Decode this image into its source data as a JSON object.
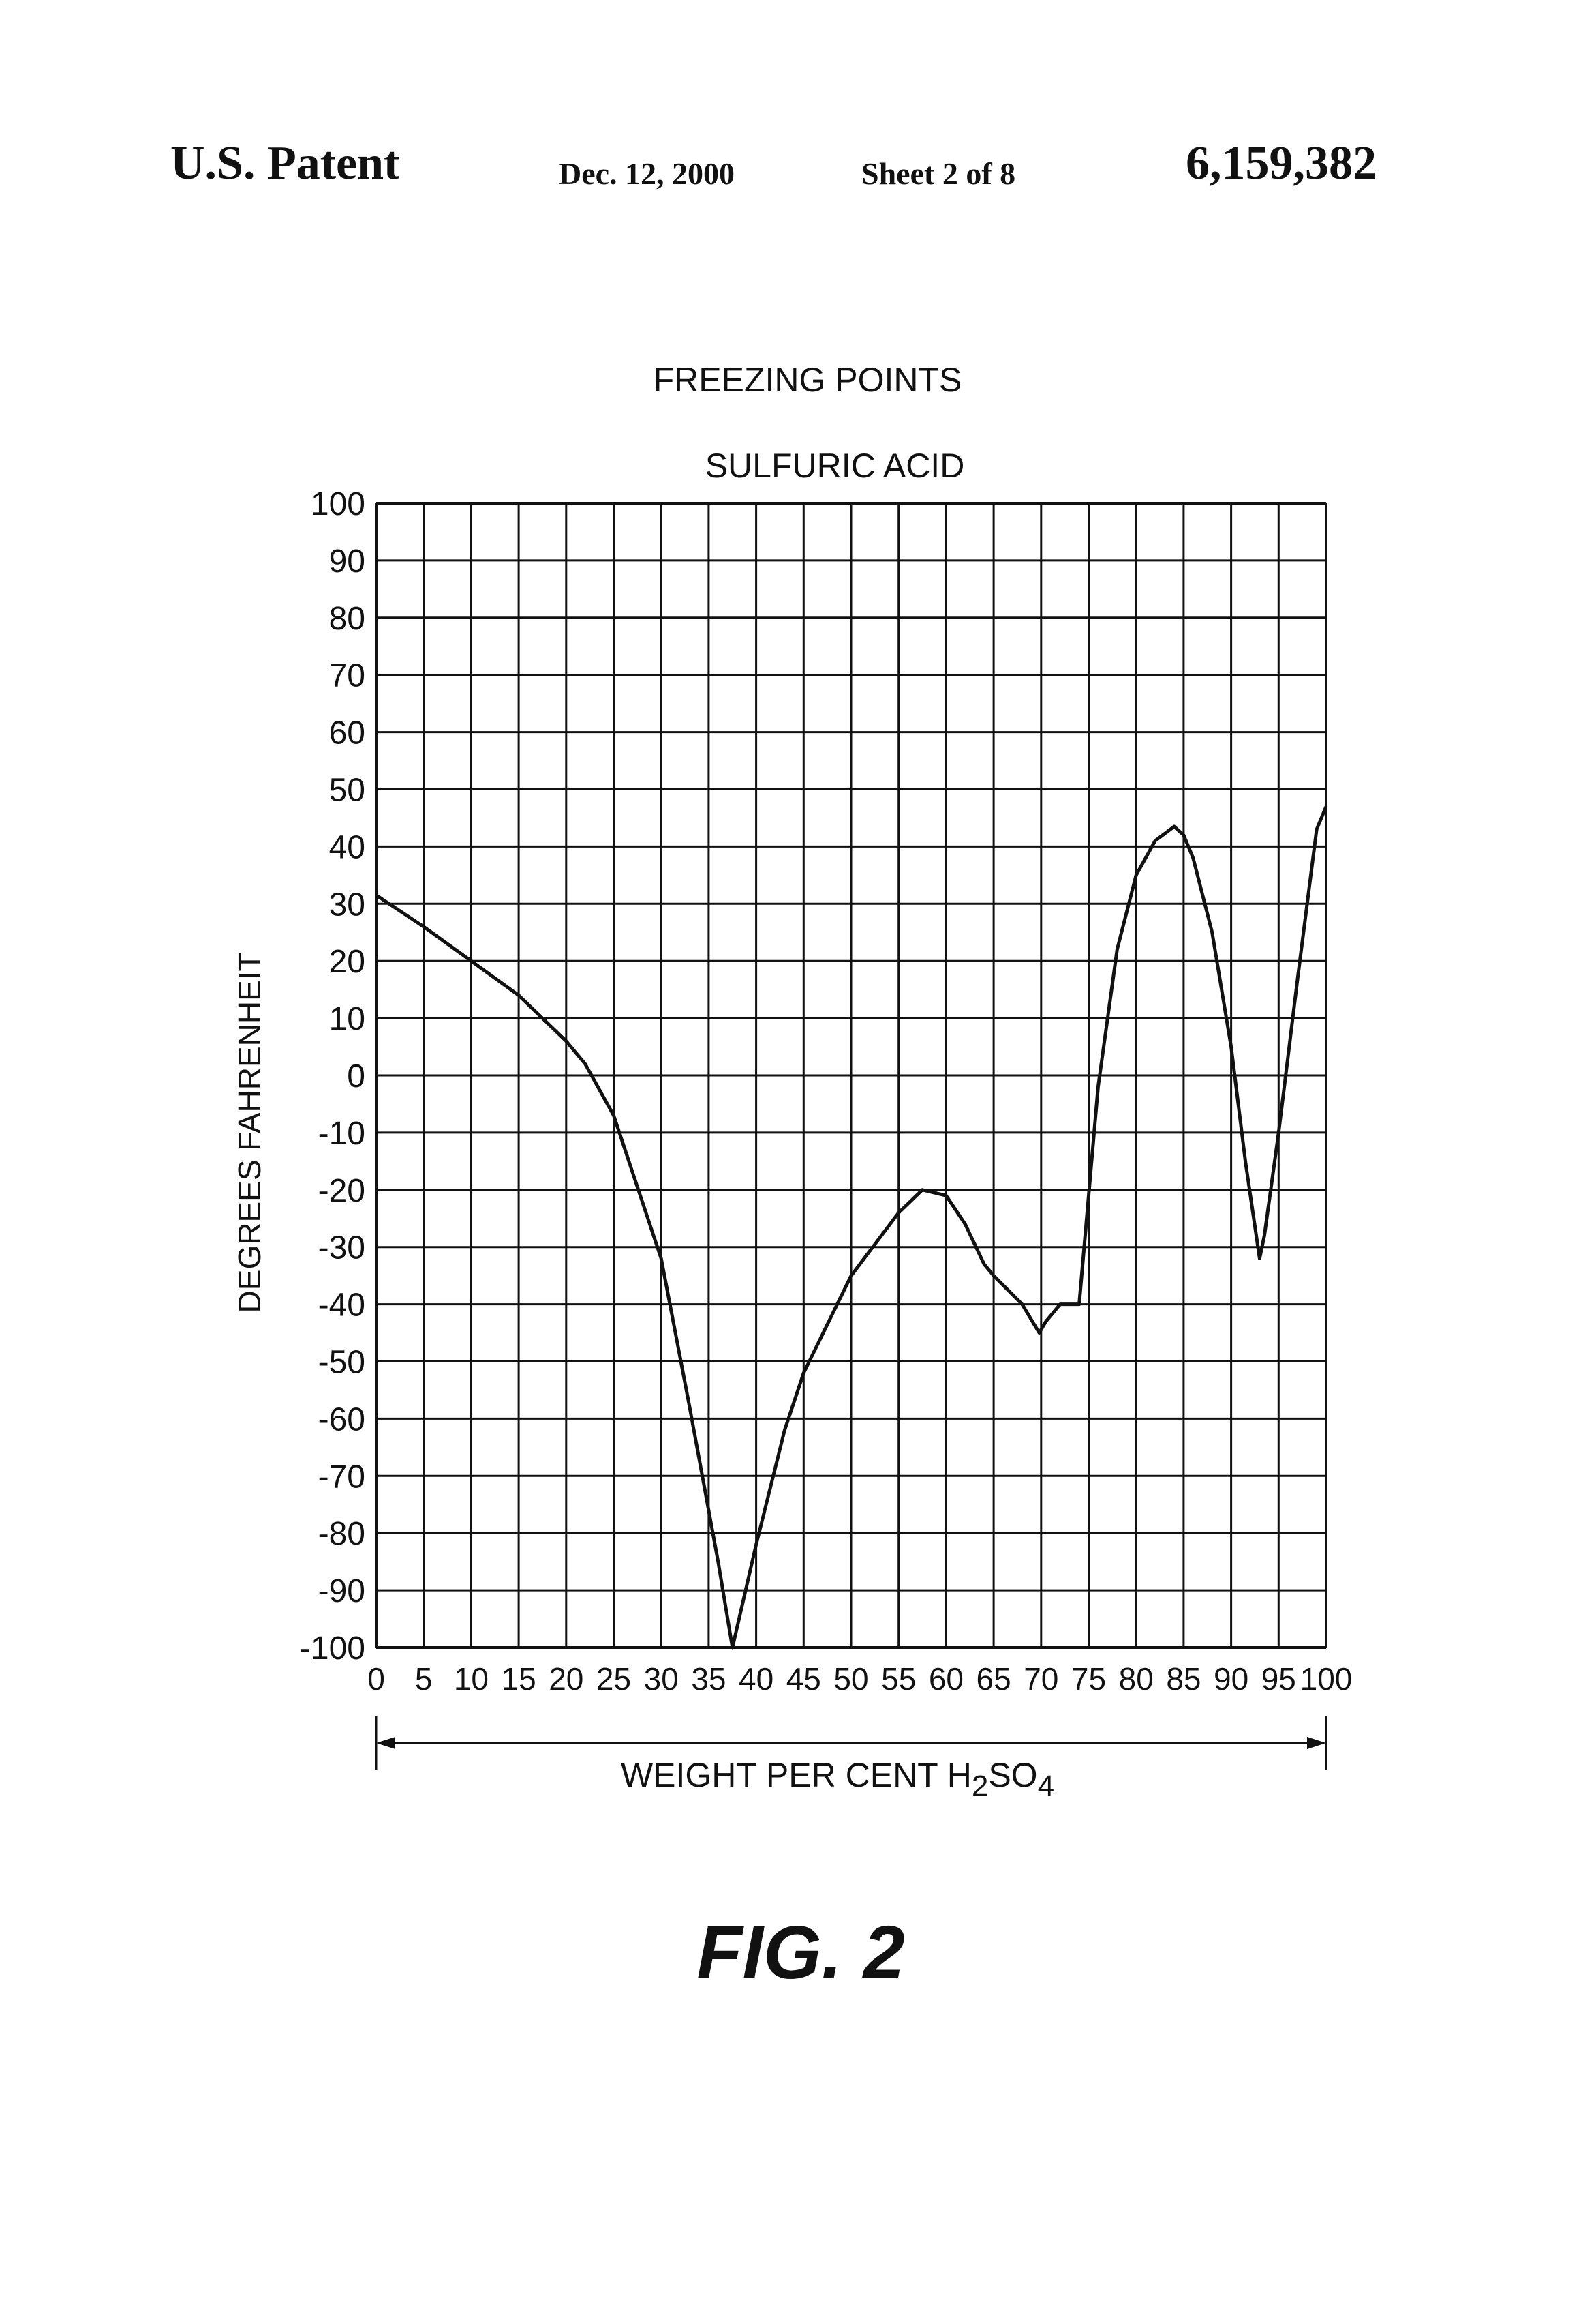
{
  "header": {
    "left": "U.S. Patent",
    "date": "Dec. 12, 2000",
    "sheet": "Sheet 2 of 8",
    "patent_number": "6,159,382"
  },
  "figure_label": "FIG. 2",
  "chart_data": {
    "type": "line",
    "title": "FREEZING POINTS",
    "subtitle": "SULFURIC ACID",
    "xlabel": "WEIGHT PER CENT H2SO4",
    "ylabel": "DEGREES FAHRENHEIT",
    "xlim": [
      0,
      100
    ],
    "ylim": [
      -100,
      100
    ],
    "grid": true,
    "x_ticks": [
      0,
      5,
      10,
      15,
      20,
      25,
      30,
      35,
      40,
      45,
      50,
      55,
      60,
      65,
      70,
      75,
      80,
      85,
      90,
      95,
      100
    ],
    "y_ticks": [
      100,
      90,
      80,
      70,
      60,
      50,
      40,
      30,
      20,
      10,
      0,
      -10,
      -20,
      -30,
      -40,
      -50,
      -60,
      -70,
      -80,
      -90,
      -100
    ],
    "series": [
      {
        "x": [
          0,
          5,
          10,
          15,
          20,
          22,
          25,
          28,
          30,
          33,
          36,
          37.5,
          40,
          43,
          45,
          50,
          55,
          57.5,
          60,
          62,
          64,
          65,
          68,
          69.8,
          70.5,
          72,
          74,
          76,
          78,
          80,
          82,
          84,
          85,
          86,
          88,
          90,
          91.5,
          93,
          93.5,
          95,
          97,
          99,
          100
        ],
        "y": [
          31.5,
          26,
          20,
          14,
          6,
          2,
          -7,
          -22,
          -32,
          -58,
          -85,
          -100,
          -82,
          -62,
          -52,
          -35,
          -24,
          -20,
          -21,
          -26,
          -33,
          -35,
          -40,
          -45,
          -43,
          -40,
          -40,
          -2,
          22,
          35,
          41,
          43.5,
          42,
          38,
          25,
          5,
          -15,
          -32,
          -28,
          -10,
          17,
          43,
          47
        ]
      }
    ]
  }
}
